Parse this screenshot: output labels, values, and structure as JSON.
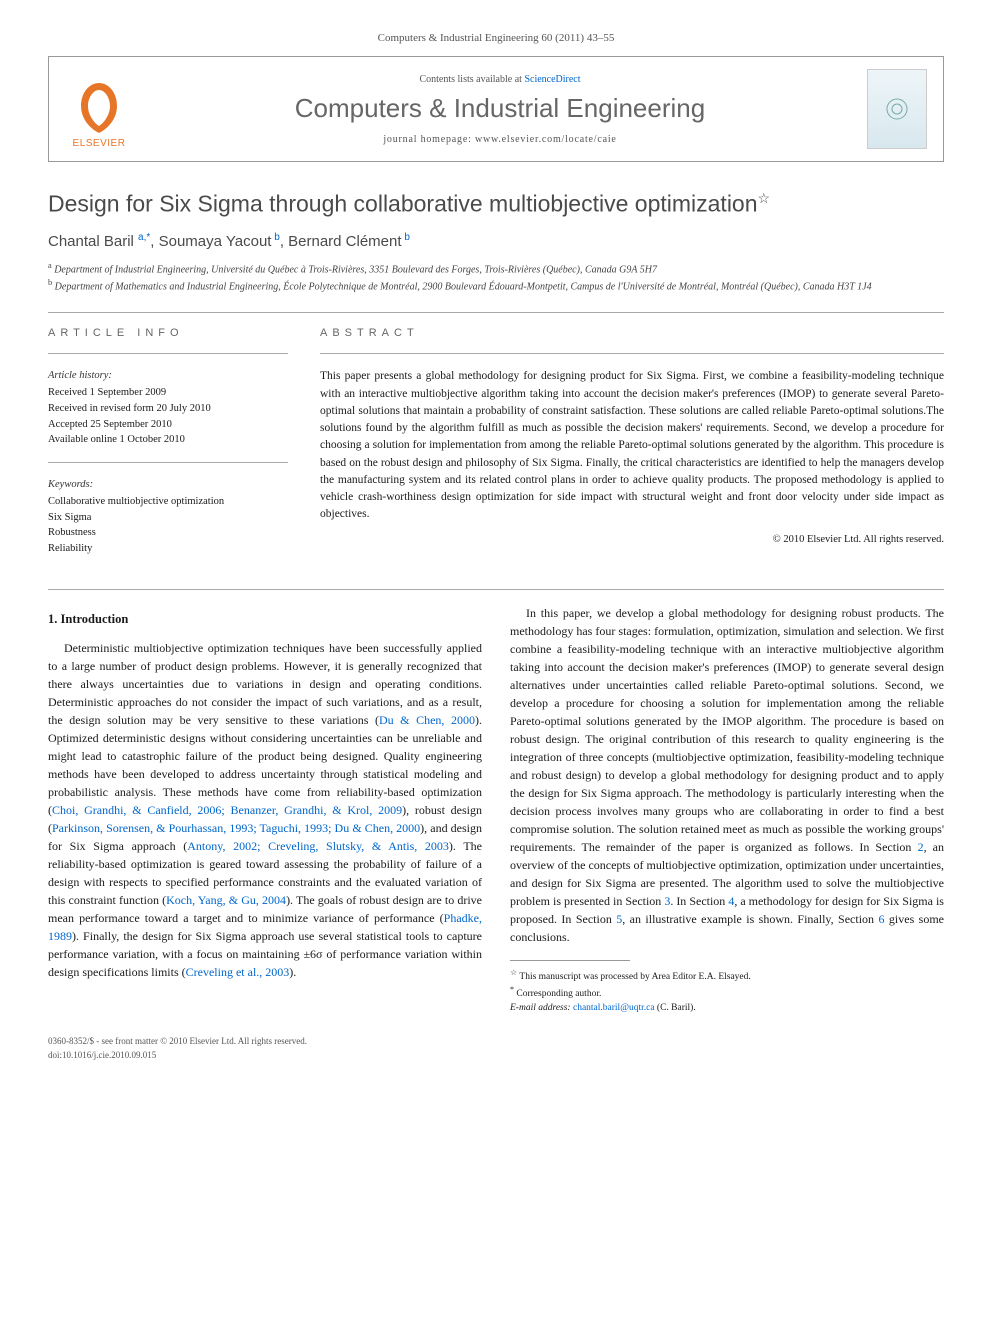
{
  "journal_ref": "Computers & Industrial Engineering 60 (2011) 43–55",
  "header": {
    "contents_prefix": "Contents lists available at ",
    "contents_link": "ScienceDirect",
    "journal_name": "Computers & Industrial Engineering",
    "homepage_prefix": "journal homepage: ",
    "homepage_url": "www.elsevier.com/locate/caie",
    "publisher": "ELSEVIER"
  },
  "article": {
    "title": "Design for Six Sigma through collaborative multiobjective optimization",
    "star": "☆",
    "authors_html": "Chantal Baril <sup>a,*</sup>, Soumaya Yacout<sup> b</sup>, Bernard Clément<sup> b</sup>",
    "affiliations": [
      {
        "sup": "a",
        "text": "Department of Industrial Engineering, Université du Québec à Trois-Rivières, 3351 Boulevard des Forges, Trois-Rivières (Québec), Canada G9A 5H7"
      },
      {
        "sup": "b",
        "text": "Department of Mathematics and Industrial Engineering, École Polytechnique de Montréal, 2900 Boulevard Édouard-Montpetit, Campus de l'Université de Montréal, Montréal (Québec), Canada H3T 1J4"
      }
    ]
  },
  "info": {
    "section_label": "article info",
    "history_heading": "Article history:",
    "history": [
      "Received 1 September 2009",
      "Received in revised form 20 July 2010",
      "Accepted 25 September 2010",
      "Available online 1 October 2010"
    ],
    "keywords_heading": "Keywords:",
    "keywords": [
      "Collaborative multiobjective optimization",
      "Six Sigma",
      "Robustness",
      "Reliability"
    ]
  },
  "abstract": {
    "section_label": "abstract",
    "text": "This paper presents a global methodology for designing product for Six Sigma. First, we combine a feasibility-modeling technique with an interactive multiobjective algorithm taking into account the decision maker's preferences (IMOP) to generate several Pareto-optimal solutions that maintain a probability of constraint satisfaction. These solutions are called reliable Pareto-optimal solutions.The solutions found by the algorithm fulfill as much as possible the decision makers' requirements. Second, we develop a procedure for choosing a solution for implementation from among the reliable Pareto-optimal solutions generated by the algorithm. This procedure is based on the robust design and philosophy of Six Sigma. Finally, the critical characteristics are identified to help the managers develop the manufacturing system and its related control plans in order to achieve quality products. The proposed methodology is applied to vehicle crash-worthiness design optimization for side impact with structural weight and front door velocity under side impact as objectives.",
    "copyright": "© 2010 Elsevier Ltd. All rights reserved."
  },
  "body": {
    "heading": "1. Introduction",
    "p1_parts": [
      "Deterministic multiobjective optimization techniques have been successfully applied to a large number of product design problems. However, it is generally recognized that there always uncertainties due to variations in design and operating conditions. Deterministic approaches do not consider the impact of such variations, and as a result, the design solution may be very sensitive to these variations (",
      "Du & Chen, 2000",
      "). Optimized deterministic designs without considering uncertainties can be unreliable and might lead to catastrophic failure of the product being designed. Quality engineering methods have been developed to address uncertainty through statistical modeling and probabilistic analysis. These methods have come from reliability-based optimization (",
      "Choi, Grandhi, & Canfield, 2006; Benanzer, Grandhi, & Krol, 2009",
      "), robust design (",
      "Parkinson, Sorensen, & Pourhassan, 1993; Taguchi, 1993; Du & Chen, 2000",
      "), and design for Six Sigma approach (",
      "Antony, 2002; Creveling, Slutsky, & Antis, 2003",
      "). The reliability-based optimization is geared toward assessing the probability of failure of a design with respects to specified performance constraints and the evaluated variation of this constraint function (",
      "Koch, Yang, & Gu, 2004",
      "). The goals of robust design are to drive mean performance toward a target and to minimize variance of performance (",
      "Phadke, 1989",
      "). Finally, the design for Six Sigma approach use several statistical tools to capture performance variation, with a focus on maintaining ±6σ of performance variation within design specifications limits (",
      "Creveling et al., 2003",
      ")."
    ],
    "p2_parts": [
      "In this paper, we develop a global methodology for designing robust products. The methodology has four stages: formulation, optimization, simulation and selection. We first combine a feasibility-modeling technique with an interactive multiobjective algorithm taking into account the decision maker's preferences (IMOP) to generate several design alternatives under uncertainties called reliable Pareto-optimal solutions. Second, we develop a procedure for choosing a solution for implementation among the reliable Pareto-optimal solutions generated by the IMOP algorithm. The procedure is based on robust design. The original contribution of this research to quality engineering is the integration of three concepts (multiobjective optimization, feasibility-modeling technique and robust design) to develop a global methodology for designing product and to apply the design for Six Sigma approach. The methodology is particularly interesting when the decision process involves many groups who are collaborating in order to find a best compromise solution. The solution retained meet as much as possible the working groups' requirements. The remainder of the paper is organized as follows. In Section ",
      "2",
      ", an overview of the concepts of multiobjective optimization, optimization under uncertainties, and design for Six Sigma are presented. The algorithm used to solve the multiobjective problem is presented in Section ",
      "3",
      ". In Section ",
      "4",
      ", a methodology for design for Six Sigma is proposed. In Section ",
      "5",
      ", an illustrative example is shown. Finally, Section ",
      "6",
      " gives some conclusions."
    ]
  },
  "footnotes": {
    "star": "This manuscript was processed by Area Editor E.A. Elsayed.",
    "corr": "Corresponding author.",
    "email_label": "E-mail address:",
    "email": "chantal.baril@uqtr.ca",
    "email_author": "(C. Baril)."
  },
  "footer": {
    "line1": "0360-8352/$ - see front matter © 2010 Elsevier Ltd. All rights reserved.",
    "line2": "doi:10.1016/j.cie.2010.09.015"
  }
}
